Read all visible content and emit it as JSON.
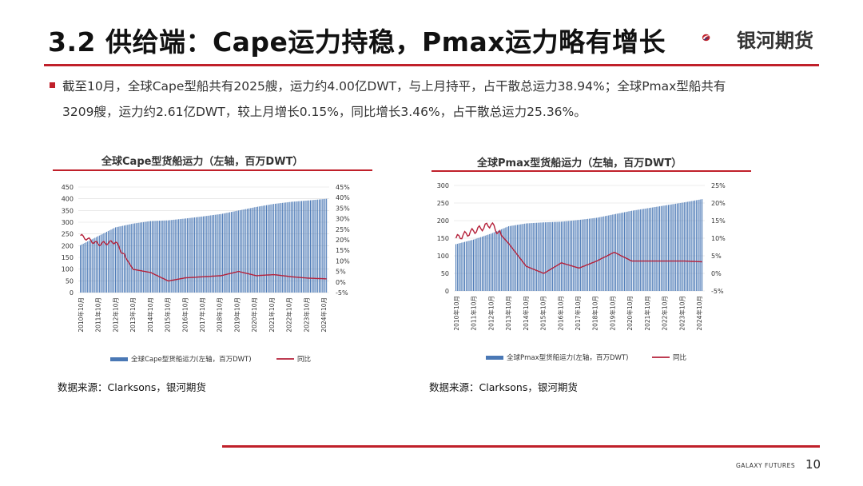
{
  "header": {
    "title": "3.2 供给端：Cape运力持稳，Pmax运力略有增长",
    "logo_text": "银河期货",
    "logo_icon": "galaxy-swirl-icon"
  },
  "summary": {
    "line1": "截至10月，全球Cape型船共有2025艘，运力约4.00亿DWT，与上月持平，占干散总运力38.94%；全球Pmax型船共有",
    "line2": "3209艘，运力约2.61亿DWT，较上月增长0.15%，同比增长3.46%，占干散总运力25.36%。"
  },
  "colors": {
    "accent": "#c0202a",
    "bar": "#4a78b5",
    "line": "#b5213a",
    "grid": "#d9d9d9"
  },
  "chart_data": [
    {
      "type": "bar",
      "title": "全球Cape型货船运力（左轴，百万DWT）",
      "x_ticks": [
        "2010年10月",
        "2011年10月",
        "2012年10月",
        "2013年10月",
        "2014年10月",
        "2015年10月",
        "2016年10月",
        "2017年10月",
        "2018年10月",
        "2019年10月",
        "2020年10月",
        "2021年10月",
        "2022年10月",
        "2023年10月",
        "2024年10月"
      ],
      "left_axis": {
        "range": [
          0,
          450
        ],
        "ticks": [
          "0",
          "50",
          "100",
          "150",
          "200",
          "250",
          "300",
          "350",
          "400",
          "450"
        ]
      },
      "right_axis": {
        "range": [
          -5,
          45
        ],
        "ticks": [
          "-5%",
          "0%",
          "5%",
          "10%",
          "15%",
          "20%",
          "25%",
          "30%",
          "35%",
          "40%",
          "45%"
        ]
      },
      "series": [
        {
          "name": "全球Cape型货船运力(左轴，百万DWT)",
          "type": "bar",
          "axis": "left",
          "anchors": [
            202,
            240,
            278,
            294,
            305,
            308,
            316,
            325,
            335,
            350,
            365,
            378,
            387,
            393,
            400
          ]
        },
        {
          "name": "同比",
          "type": "line",
          "axis": "right",
          "anchors": [
            22,
            18,
            19,
            6,
            4.5,
            0.5,
            2,
            2.5,
            3,
            5,
            3,
            3.5,
            2.5,
            1.8,
            1.5
          ]
        }
      ],
      "legend": [
        "全球Cape型货船运力(左轴，百万DWT)",
        "同比"
      ],
      "legend_position": "bottom"
    },
    {
      "type": "bar",
      "title": "全球Pmax型货船运力（左轴，百万DWT）",
      "x_ticks": [
        "2010年10月",
        "2011年10月",
        "2012年10月",
        "2013年10月",
        "2014年10月",
        "2015年10月",
        "2016年10月",
        "2017年10月",
        "2018年10月",
        "2019年10月",
        "2020年10月",
        "2021年10月",
        "2022年10月",
        "2023年10月",
        "2024年10月"
      ],
      "left_axis": {
        "range": [
          0,
          300
        ],
        "ticks": [
          "0",
          "50",
          "100",
          "150",
          "200",
          "250",
          "300"
        ]
      },
      "right_axis": {
        "range": [
          -5,
          25
        ],
        "ticks": [
          "-5%",
          "0%",
          "5%",
          "10%",
          "15%",
          "20%",
          "25%"
        ]
      },
      "series": [
        {
          "name": "全球Pmax型货船运力(左轴，百万DWT)",
          "type": "bar",
          "axis": "left",
          "anchors": [
            133,
            146,
            163,
            184,
            192,
            195,
            197,
            202,
            208,
            218,
            228,
            236,
            244,
            252,
            261
          ]
        },
        {
          "name": "同比",
          "type": "line",
          "axis": "right",
          "anchors": [
            10,
            12,
            14,
            8.5,
            2,
            0,
            3,
            1.5,
            3.5,
            6,
            3.5,
            3.5,
            3.5,
            3.5,
            3.3
          ]
        }
      ],
      "legend": [
        "全球Pmax型货船运力(左轴，百万DWT)",
        "同比"
      ],
      "legend_position": "bottom"
    }
  ],
  "sources": [
    "数据来源：Clarksons，银河期货",
    "数据来源：Clarksons，银河期货"
  ],
  "footer": {
    "brand": "GALAXY FUTURES",
    "page": "10"
  }
}
